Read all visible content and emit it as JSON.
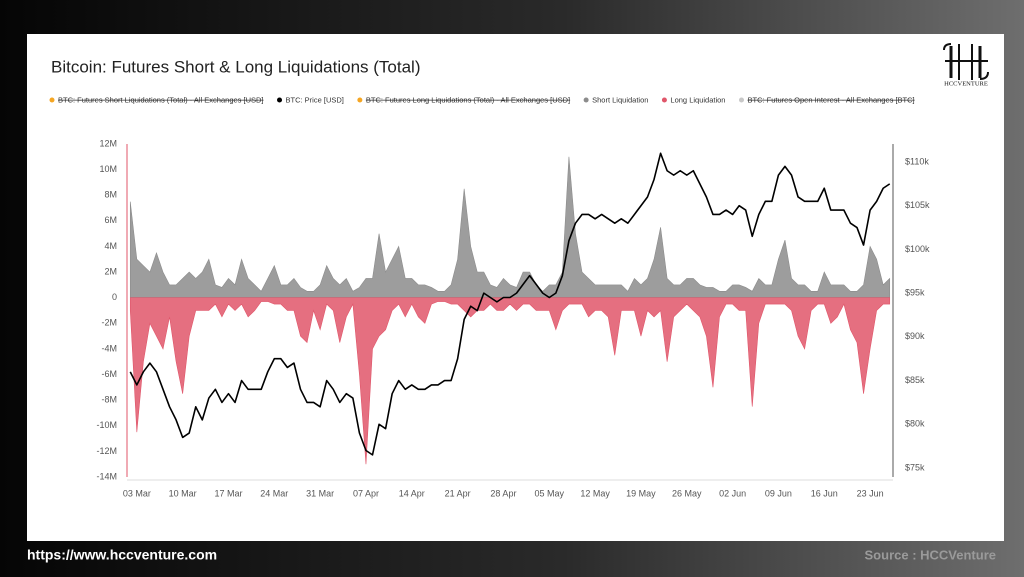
{
  "chart_data": {
    "type": "area-line",
    "title": "Bitcoin: Futures Short & Long Liquidations (Total)",
    "brand": "HCCVENTURE",
    "footer_url": "https://www.hccventure.com",
    "footer_source": "Source : HCCVenture",
    "categories": [
      null,
      "03 Mar",
      null,
      null,
      null,
      null,
      null,
      null,
      "10 Mar",
      null,
      null,
      null,
      null,
      null,
      null,
      "17 Mar",
      null,
      null,
      null,
      null,
      null,
      null,
      "24 Mar",
      null,
      null,
      null,
      null,
      null,
      null,
      "31 Mar",
      null,
      null,
      null,
      null,
      null,
      null,
      "07 Apr",
      null,
      null,
      null,
      null,
      null,
      null,
      "14 Apr",
      null,
      null,
      null,
      null,
      null,
      null,
      "21 Apr",
      null,
      null,
      null,
      null,
      null,
      null,
      "28 Apr",
      null,
      null,
      null,
      null,
      null,
      null,
      "05 May",
      null,
      null,
      null,
      null,
      null,
      null,
      "12 May",
      null,
      null,
      null,
      null,
      null,
      null,
      "19 May",
      null,
      null,
      null,
      null,
      null,
      null,
      "26 May",
      null,
      null,
      null,
      null,
      null,
      null,
      "02 Jun",
      null,
      null,
      null,
      null,
      null,
      null,
      "09 Jun",
      null,
      null,
      null,
      null,
      null,
      null,
      "16 Jun",
      null,
      null,
      null,
      null,
      null,
      null,
      "23 Jun",
      null,
      null,
      null
    ],
    "ylim": [
      -14,
      12
    ],
    "yticks": [
      {
        "value": 12,
        "label": "12M"
      },
      {
        "value": 10,
        "label": "10M"
      },
      {
        "value": 8,
        "label": "8M"
      },
      {
        "value": 6,
        "label": "6M"
      },
      {
        "value": 4,
        "label": "4M"
      },
      {
        "value": 2,
        "label": "2M"
      },
      0,
      {
        "value": -2,
        "label": "-2M"
      },
      {
        "value": -4,
        "label": "-4M"
      },
      {
        "value": -6,
        "label": "-6M"
      },
      {
        "value": -8,
        "label": "-8M"
      },
      {
        "value": -10,
        "label": "-10M"
      },
      {
        "value": -12,
        "label": "-12M"
      },
      {
        "value": -14,
        "label": "-14M"
      }
    ],
    "y2lim": [
      74,
      112
    ],
    "y2ticks": [
      {
        "value": 110,
        "label": "$110k"
      },
      {
        "value": 105,
        "label": "$105k"
      },
      {
        "value": 100,
        "label": "$100k"
      },
      {
        "value": 95,
        "label": "$95k"
      },
      {
        "value": 90,
        "label": "$90k"
      },
      {
        "value": 85,
        "label": "$85k"
      },
      {
        "value": 80,
        "label": "$80k"
      },
      {
        "value": 75,
        "label": "$75k"
      }
    ],
    "grid": false,
    "series": [
      {
        "name": "BTC: Futures Short Liquidations (Total) - All Exchanges [USD]",
        "color": "#f5a623",
        "hidden": true
      },
      {
        "name": "BTC: Price [USD]",
        "color": "#000000",
        "axis": "y2",
        "style": "line",
        "values": [
          86,
          84.5,
          86,
          87,
          86,
          84,
          82,
          80.5,
          78.5,
          79,
          82,
          80.5,
          83,
          84,
          82.5,
          83.5,
          82.5,
          85,
          84,
          84,
          84,
          86,
          87.5,
          87.5,
          86.5,
          87,
          84,
          82.5,
          82.5,
          82,
          85,
          84,
          82.5,
          83.5,
          83,
          79,
          77,
          76.5,
          80,
          79.5,
          83.5,
          85,
          84,
          84.5,
          84,
          84,
          84.5,
          84.5,
          85,
          85,
          87.5,
          92,
          93.5,
          93,
          95,
          94.5,
          94,
          94.5,
          94.5,
          95,
          96,
          97,
          96,
          95,
          94.5,
          95,
          97,
          101,
          103,
          104,
          104,
          103.5,
          104,
          103.5,
          103,
          103.5,
          103,
          104,
          105,
          106,
          108,
          111,
          109,
          108.5,
          109,
          108.5,
          109,
          107.5,
          106,
          104,
          104,
          104.5,
          104,
          105,
          104.5,
          101.5,
          104,
          105.5,
          105.5,
          108.5,
          109.5,
          108.5,
          106,
          105.5,
          105.5,
          105.5,
          107,
          104.5,
          104.5,
          104.5,
          103,
          102.5,
          100.5,
          104.5,
          105.5,
          107,
          107.5
        ]
      },
      {
        "name": "BTC: Futures Long Liquidations (Total) - All Exchanges [USD]",
        "color": "#f5a623",
        "hidden": true
      },
      {
        "name": "Short Liquidation",
        "color": "#8c8c8c",
        "style": "area",
        "values": [
          7.5,
          3,
          2.5,
          2,
          3.5,
          2,
          1,
          1,
          1.5,
          2,
          1.5,
          2,
          3,
          1,
          0.8,
          1.5,
          1,
          3,
          1.5,
          1,
          0.5,
          1.5,
          2.5,
          1,
          1,
          1.5,
          0.8,
          0.5,
          0.5,
          1,
          2.5,
          1.5,
          1,
          1.5,
          0.5,
          0.8,
          1.5,
          1.5,
          5,
          2,
          3,
          4,
          1.5,
          1.5,
          1,
          1,
          0.8,
          0.5,
          0.5,
          1,
          3,
          8.5,
          4,
          2,
          2,
          1,
          0.8,
          1.5,
          1,
          0.8,
          2,
          2,
          1,
          0.5,
          1,
          1,
          2,
          11,
          5,
          2,
          1.5,
          1,
          1,
          1,
          1,
          1,
          0.5,
          1.5,
          1,
          1.5,
          3,
          5.5,
          1.5,
          1,
          1,
          1.5,
          1.5,
          1,
          0.8,
          0.8,
          0.5,
          0.5,
          1,
          1,
          0.8,
          0.5,
          1.5,
          1,
          1,
          3,
          4.5,
          1.5,
          1,
          1,
          0.5,
          0.5,
          2,
          1,
          1,
          1,
          0.5,
          0.5,
          1,
          4,
          3,
          1,
          1.5
        ]
      },
      {
        "name": "Long Liquidation",
        "color": "#e0566a",
        "style": "area",
        "values": [
          -1,
          -10.5,
          -5,
          -2,
          -3,
          -4,
          -1.5,
          -5,
          -7.5,
          -3,
          -1,
          -1,
          -1,
          -0.5,
          -1.5,
          -0.5,
          -1,
          -0.5,
          -1.5,
          -1,
          -0.3,
          -0.3,
          -0.5,
          -0.5,
          -1,
          -1,
          -3,
          -3.5,
          -1,
          -2.5,
          -0.5,
          -1,
          -3.5,
          -1.5,
          -0.5,
          -6,
          -13,
          -4,
          -3,
          -2.5,
          -1,
          -0.5,
          -1.5,
          -0.5,
          -1.5,
          -2,
          -0.5,
          -0.3,
          -0.3,
          -0.5,
          -0.5,
          -1,
          -1.5,
          -1,
          -1,
          -0.5,
          -1,
          -1,
          -0.5,
          -1,
          -0.5,
          -0.5,
          -1,
          -1,
          -1,
          -2.5,
          -1,
          -0.5,
          -0.5,
          -0.5,
          -1.5,
          -1,
          -1,
          -1.5,
          -4.5,
          -1,
          -1,
          -1,
          -3,
          -1,
          -1.5,
          -1,
          -5,
          -1.5,
          -1,
          -0.5,
          -1,
          -1.5,
          -3,
          -7,
          -1.5,
          -0.5,
          -0.5,
          -1,
          -1,
          -8.5,
          -2,
          -0.5,
          -0.5,
          -0.5,
          -0.5,
          -1,
          -3,
          -4,
          -1,
          -0.5,
          -0.5,
          -2,
          -1.5,
          -0.5,
          -2.5,
          -3.5,
          -7.5,
          -4,
          -1,
          -0.5,
          -0.5
        ]
      },
      {
        "name": "BTC: Futures Open Interest - All Exchanges [BTC]",
        "color": "#c8c8c8",
        "hidden": true
      }
    ]
  }
}
